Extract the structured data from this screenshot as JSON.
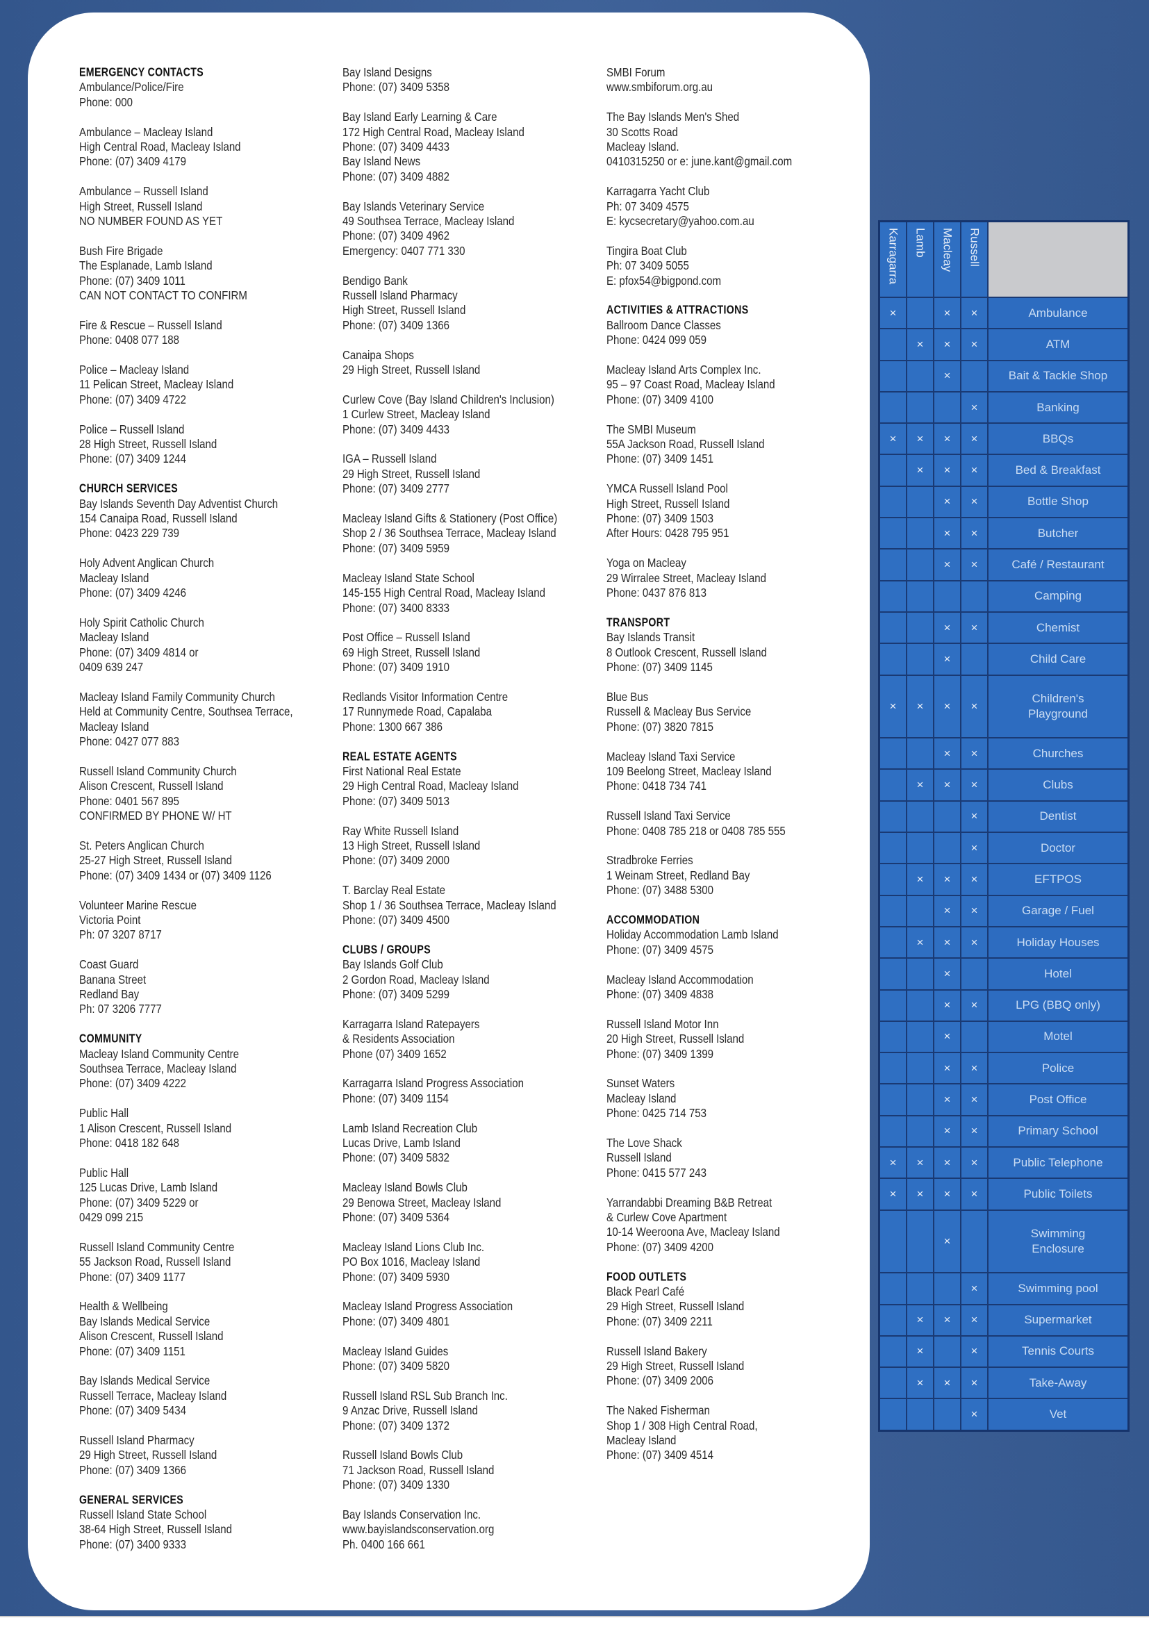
{
  "columns": [
    [
      {
        "heading": "EMERGENCY CONTACTS"
      },
      {
        "lines": [
          "Ambulance/Police/Fire",
          "Phone: 000"
        ]
      },
      {
        "lines": [
          "Ambulance – Macleay Island",
          "High Central Road, Macleay Island",
          "Phone: (07) 3409 4179"
        ]
      },
      {
        "lines": [
          "Ambulance – Russell Island",
          "High Street, Russell Island",
          "NO NUMBER FOUND AS YET"
        ]
      },
      {
        "lines": [
          "Bush Fire Brigade",
          "The Esplanade, Lamb Island",
          "Phone: (07) 3409 1011",
          "CAN NOT CONTACT TO CONFIRM"
        ]
      },
      {
        "lines": [
          "Fire & Rescue – Russell Island",
          "Phone: 0408 077 188"
        ]
      },
      {
        "lines": [
          "Police – Macleay Island",
          "11 Pelican Street, Macleay Island",
          "Phone: (07) 3409 4722"
        ]
      },
      {
        "lines": [
          "Police – Russell Island",
          "28 High Street, Russell Island",
          "Phone: (07) 3409 1244"
        ]
      },
      {
        "heading": "CHURCH SERVICES"
      },
      {
        "lines": [
          "Bay Islands Seventh Day Adventist Church",
          "154 Canaipa Road, Russell Island",
          "Phone: 0423 229 739"
        ]
      },
      {
        "lines": [
          "Holy Advent Anglican Church",
          "Macleay Island",
          "Phone: (07) 3409 4246"
        ]
      },
      {
        "lines": [
          "Holy Spirit Catholic Church",
          "Macleay Island",
          "Phone: (07) 3409 4814 or",
          "0409 639 247"
        ]
      },
      {
        "lines": [
          "Macleay Island Family Community Church",
          "Held at Community Centre, Southsea Terrace,",
          "Macleay Island",
          "Phone: 0427 077 883"
        ]
      },
      {
        "lines": [
          "Russell Island Community Church",
          "Alison Crescent, Russell Island",
          "Phone: 0401 567 895",
          "CONFIRMED BY PHONE W/ HT"
        ]
      },
      {
        "lines": [
          "St. Peters Anglican Church",
          "25-27 High Street, Russell Island",
          "Phone: (07) 3409 1434 or (07) 3409 1126"
        ]
      },
      {
        "lines": [
          "Volunteer Marine Rescue",
          "Victoria Point",
          "Ph: 07 3207 8717"
        ]
      },
      {
        "lines": [
          "Coast Guard",
          "Banana Street",
          "Redland Bay",
          "Ph: 07 3206 7777"
        ]
      },
      {
        "heading": "COMMUNITY"
      },
      {
        "lines": [
          "Macleay Island Community Centre",
          "Southsea Terrace, Macleay Island",
          "Phone: (07) 3409 4222"
        ]
      },
      {
        "lines": [
          "Public Hall",
          "1 Alison Crescent, Russell Island",
          "Phone: 0418 182 648"
        ]
      },
      {
        "lines": [
          "Public Hall",
          "125 Lucas Drive, Lamb Island",
          "Phone: (07) 3409 5229 or",
          "0429 099 215"
        ]
      },
      {
        "lines": [
          "Russell Island Community Centre",
          "55 Jackson Road, Russell Island",
          "Phone: (07) 3409 1177"
        ]
      },
      {
        "lines": [
          "Health & Wellbeing",
          "Bay Islands Medical Service",
          "Alison Crescent, Russell Island",
          "Phone: (07) 3409 1151"
        ]
      },
      {
        "lines": [
          "Bay Islands Medical Service",
          "Russell Terrace, Macleay Island",
          "Phone: (07) 3409 5434"
        ]
      },
      {
        "lines": [
          "Russell Island Pharmacy",
          "29 High Street, Russell Island",
          "Phone: (07) 3409 1366"
        ]
      },
      {
        "heading": "GENERAL SERVICES"
      },
      {
        "lines": [
          "Russell Island State School",
          "38-64 High Street, Russell Island",
          "Phone: (07) 3400 9333"
        ]
      }
    ],
    [
      {
        "lines": [
          "Bay Island Designs",
          "Phone: (07) 3409 5358"
        ]
      },
      {
        "lines": [
          "Bay Island Early Learning & Care",
          "172 High Central Road, Macleay Island",
          "Phone: (07) 3409 4433",
          "Bay Island News",
          "Phone: (07) 3409 4882"
        ]
      },
      {
        "lines": [
          "Bay Islands Veterinary Service",
          "49 Southsea Terrace, Macleay Island",
          "Phone: (07) 3409 4962",
          "Emergency: 0407 771 330"
        ]
      },
      {
        "lines": [
          "Bendigo Bank",
          "Russell Island Pharmacy",
          "High Street, Russell Island",
          "Phone: (07) 3409 1366"
        ]
      },
      {
        "lines": [
          "Canaipa Shops",
          "29 High Street, Russell Island"
        ]
      },
      {
        "lines": [
          "Curlew Cove (Bay Island Children's Inclusion)",
          "1 Curlew Street, Macleay Island",
          "Phone: (07) 3409 4433"
        ]
      },
      {
        "lines": [
          "IGA – Russell Island",
          "29 High Street, Russell Island",
          "Phone: (07) 3409 2777"
        ]
      },
      {
        "lines": [
          "Macleay Island Gifts & Stationery (Post Office)",
          "Shop 2 / 36 Southsea Terrace, Macleay Island",
          "Phone: (07) 3409 5959"
        ]
      },
      {
        "lines": [
          "Macleay Island State School",
          "145-155 High Central Road, Macleay Island",
          "Phone: (07) 3400 8333"
        ]
      },
      {
        "lines": [
          "Post Office – Russell Island",
          "69 High Street, Russell Island",
          "Phone: (07) 3409 1910"
        ]
      },
      {
        "lines": [
          "Redlands Visitor Information Centre",
          "17 Runnymede Road, Capalaba",
          "Phone: 1300 667 386"
        ]
      },
      {
        "heading": "REAL ESTATE AGENTS"
      },
      {
        "lines": [
          "First National Real Estate",
          "29 High Central Road, Macleay Island",
          "Phone: (07) 3409 5013"
        ]
      },
      {
        "lines": [
          "Ray White Russell Island",
          "13 High Street, Russell Island",
          "Phone: (07) 3409 2000"
        ]
      },
      {
        "lines": [
          "T. Barclay Real Estate",
          "Shop 1 / 36 Southsea Terrace, Macleay Island",
          "Phone: (07) 3409 4500"
        ]
      },
      {
        "heading": "CLUBS / GROUPS"
      },
      {
        "lines": [
          "Bay Islands Golf Club",
          "2 Gordon Road, Macleay Island",
          "Phone: (07) 3409 5299"
        ]
      },
      {
        "lines": [
          "Karragarra Island Ratepayers",
          "& Residents Association",
          "Phone (07) 3409 1652"
        ]
      },
      {
        "lines": [
          "Karragarra Island Progress Association",
          "Phone: (07) 3409 1154"
        ]
      },
      {
        "lines": [
          "Lamb Island Recreation Club",
          "Lucas Drive, Lamb Island",
          "Phone: (07) 3409 5832"
        ]
      },
      {
        "lines": [
          "Macleay Island Bowls Club",
          "29 Benowa Street, Macleay Island",
          "Phone: (07) 3409 5364"
        ]
      },
      {
        "lines": [
          "Macleay Island Lions Club Inc.",
          "PO Box 1016, Macleay Island",
          "Phone: (07) 3409 5930"
        ]
      },
      {
        "lines": [
          "Macleay Island Progress Association",
          "Phone: (07) 3409 4801"
        ]
      },
      {
        "lines": [
          "Macleay Island Guides",
          "Phone: (07) 3409 5820"
        ]
      },
      {
        "lines": [
          "Russell Island RSL Sub Branch Inc.",
          "9 Anzac Drive, Russell Island",
          "Phone: (07) 3409 1372"
        ]
      },
      {
        "lines": [
          "Russell Island Bowls Club",
          "71 Jackson Road, Russell Island",
          "Phone: (07) 3409 1330"
        ]
      },
      {
        "lines": [
          "Bay Islands Conservation Inc.",
          "www.bayislandsconservation.org",
          "Ph. 0400 166 661"
        ]
      }
    ],
    [
      {
        "lines": [
          "SMBI Forum",
          "www.smbiforum.org.au"
        ]
      },
      {
        "lines": [
          "The Bay Islands Men's Shed",
          "30 Scotts Road",
          "Macleay Island.",
          "0410315250 or e: june.kant@gmail.com"
        ]
      },
      {
        "lines": [
          "Karragarra Yacht Club",
          "Ph: 07 3409 4575",
          "E: kycsecretary@yahoo.com.au"
        ]
      },
      {
        "lines": [
          "Tingira Boat Club",
          "Ph: 07 3409 5055",
          "E: pfox54@bigpond.com"
        ]
      },
      {
        "heading": "ACTIVITIES & ATTRACTIONS"
      },
      {
        "lines": [
          "Ballroom Dance Classes",
          "Phone: 0424 099 059"
        ]
      },
      {
        "lines": [
          "Macleay Island Arts Complex Inc.",
          "95 – 97 Coast Road, Macleay Island",
          "Phone: (07) 3409 4100"
        ]
      },
      {
        "lines": [
          "The SMBI Museum",
          "55A Jackson Road, Russell Island",
          "Phone: (07) 3409 1451"
        ]
      },
      {
        "lines": [
          "YMCA Russell Island Pool",
          "High Street, Russell Island",
          "Phone: (07) 3409 1503",
          "After Hours: 0428 795 951"
        ]
      },
      {
        "lines": [
          "Yoga on Macleay",
          "29 Wirralee Street, Macleay Island",
          "Phone: 0437 876 813"
        ]
      },
      {
        "heading": "TRANSPORT"
      },
      {
        "lines": [
          "Bay Islands Transit",
          "8 Outlook Crescent, Russell Island",
          "Phone: (07) 3409 1145"
        ]
      },
      {
        "lines": [
          "Blue Bus",
          "Russell & Macleay Bus Service",
          "Phone: (07) 3820 7815"
        ]
      },
      {
        "lines": [
          "Macleay Island Taxi Service",
          "109 Beelong Street, Macleay Island",
          "Phone: 0418 734 741"
        ]
      },
      {
        "lines": [
          "Russell Island Taxi Service",
          "Phone: 0408 785 218 or 0408 785 555"
        ]
      },
      {
        "lines": [
          "Stradbroke Ferries",
          "1 Weinam Street, Redland Bay",
          "Phone: (07) 3488 5300"
        ]
      },
      {
        "heading": "ACCOMMODATION"
      },
      {
        "lines": [
          "Holiday Accommodation Lamb Island",
          "Phone: (07) 3409 4575"
        ]
      },
      {
        "lines": [
          "Macleay Island Accommodation",
          "Phone: (07) 3409 4838"
        ]
      },
      {
        "lines": [
          "Russell Island Motor Inn",
          "20 High Street, Russell Island",
          "Phone: (07) 3409 1399"
        ]
      },
      {
        "lines": [
          "Sunset Waters",
          "Macleay Island",
          "Phone: 0425 714 753"
        ]
      },
      {
        "lines": [
          "The Love Shack",
          "Russell Island",
          "Phone: 0415 577 243"
        ]
      },
      {
        "lines": [
          "Yarrandabbi Dreaming B&B Retreat",
          "& Curlew Cove Apartment",
          "10-14 Weeroona Ave, Macleay Island",
          "Phone: (07) 3409 4200"
        ]
      },
      {
        "heading": "FOOD OUTLETS"
      },
      {
        "lines": [
          "Black Pearl Café",
          "29 High Street, Russell Island",
          "Phone: (07) 3409 2211"
        ]
      },
      {
        "lines": [
          "Russell Island Bakery",
          "29 High Street, Russell Island",
          "Phone: (07) 3409 2006"
        ]
      },
      {
        "lines": [
          "The Naked Fisherman",
          "Shop 1 / 308 High Central Road,",
          "Macleay Island",
          "Phone: (07) 3409 4514"
        ]
      }
    ]
  ],
  "table": {
    "columns": [
      "Karragarra",
      "Lamb",
      "Macleay",
      "Russell"
    ],
    "mark": "×",
    "rows": [
      {
        "label": [
          "Ambulance"
        ],
        "marks": [
          true,
          false,
          true,
          true
        ]
      },
      {
        "label": [
          "ATM"
        ],
        "marks": [
          false,
          true,
          true,
          true
        ]
      },
      {
        "label": [
          "Bait & Tackle Shop"
        ],
        "marks": [
          false,
          false,
          true,
          false
        ]
      },
      {
        "label": [
          "Banking"
        ],
        "marks": [
          false,
          false,
          false,
          true
        ]
      },
      {
        "label": [
          "BBQs"
        ],
        "marks": [
          true,
          true,
          true,
          true
        ]
      },
      {
        "label": [
          "Bed & Breakfast"
        ],
        "marks": [
          false,
          true,
          true,
          true
        ]
      },
      {
        "label": [
          "Bottle Shop"
        ],
        "marks": [
          false,
          false,
          true,
          true
        ]
      },
      {
        "label": [
          "Butcher"
        ],
        "marks": [
          false,
          false,
          true,
          true
        ]
      },
      {
        "label": [
          "Café / Restaurant"
        ],
        "marks": [
          false,
          false,
          true,
          true
        ]
      },
      {
        "label": [
          "Camping"
        ],
        "marks": [
          false,
          false,
          false,
          false
        ]
      },
      {
        "label": [
          "Chemist"
        ],
        "marks": [
          false,
          false,
          true,
          true
        ]
      },
      {
        "label": [
          "Child Care"
        ],
        "marks": [
          false,
          false,
          true,
          false
        ]
      },
      {
        "label": [
          "Children's",
          "Playground"
        ],
        "marks": [
          true,
          true,
          true,
          true
        ]
      },
      {
        "label": [
          "Churches"
        ],
        "marks": [
          false,
          false,
          true,
          true
        ]
      },
      {
        "label": [
          "Clubs"
        ],
        "marks": [
          false,
          true,
          true,
          true
        ]
      },
      {
        "label": [
          "Dentist"
        ],
        "marks": [
          false,
          false,
          false,
          true
        ]
      },
      {
        "label": [
          "Doctor"
        ],
        "marks": [
          false,
          false,
          false,
          true
        ]
      },
      {
        "label": [
          "EFTPOS"
        ],
        "marks": [
          false,
          true,
          true,
          true
        ]
      },
      {
        "label": [
          "Garage / Fuel"
        ],
        "marks": [
          false,
          false,
          true,
          true
        ]
      },
      {
        "label": [
          "Holiday Houses"
        ],
        "marks": [
          false,
          true,
          true,
          true
        ]
      },
      {
        "label": [
          "Hotel"
        ],
        "marks": [
          false,
          false,
          true,
          false
        ]
      },
      {
        "label": [
          "LPG (BBQ only)"
        ],
        "marks": [
          false,
          false,
          true,
          true
        ]
      },
      {
        "label": [
          "Motel"
        ],
        "marks": [
          false,
          false,
          true,
          false
        ]
      },
      {
        "label": [
          "Police"
        ],
        "marks": [
          false,
          false,
          true,
          true
        ]
      },
      {
        "label": [
          "Post Office"
        ],
        "marks": [
          false,
          false,
          true,
          true
        ]
      },
      {
        "label": [
          "Primary School"
        ],
        "marks": [
          false,
          false,
          true,
          true
        ]
      },
      {
        "label": [
          "Public Telephone"
        ],
        "marks": [
          true,
          true,
          true,
          true
        ]
      },
      {
        "label": [
          "Public Toilets"
        ],
        "marks": [
          true,
          true,
          true,
          true
        ]
      },
      {
        "label": [
          "Swimming",
          "Enclosure"
        ],
        "marks": [
          false,
          false,
          true,
          false
        ]
      },
      {
        "label": [
          "Swimming pool"
        ],
        "marks": [
          false,
          false,
          false,
          true
        ]
      },
      {
        "label": [
          "Supermarket"
        ],
        "marks": [
          false,
          true,
          true,
          true
        ]
      },
      {
        "label": [
          "Tennis Courts"
        ],
        "marks": [
          false,
          true,
          false,
          true
        ]
      },
      {
        "label": [
          "Take-Away"
        ],
        "marks": [
          false,
          true,
          true,
          true
        ]
      },
      {
        "label": [
          "Vet"
        ],
        "marks": [
          false,
          false,
          false,
          true
        ]
      }
    ]
  }
}
